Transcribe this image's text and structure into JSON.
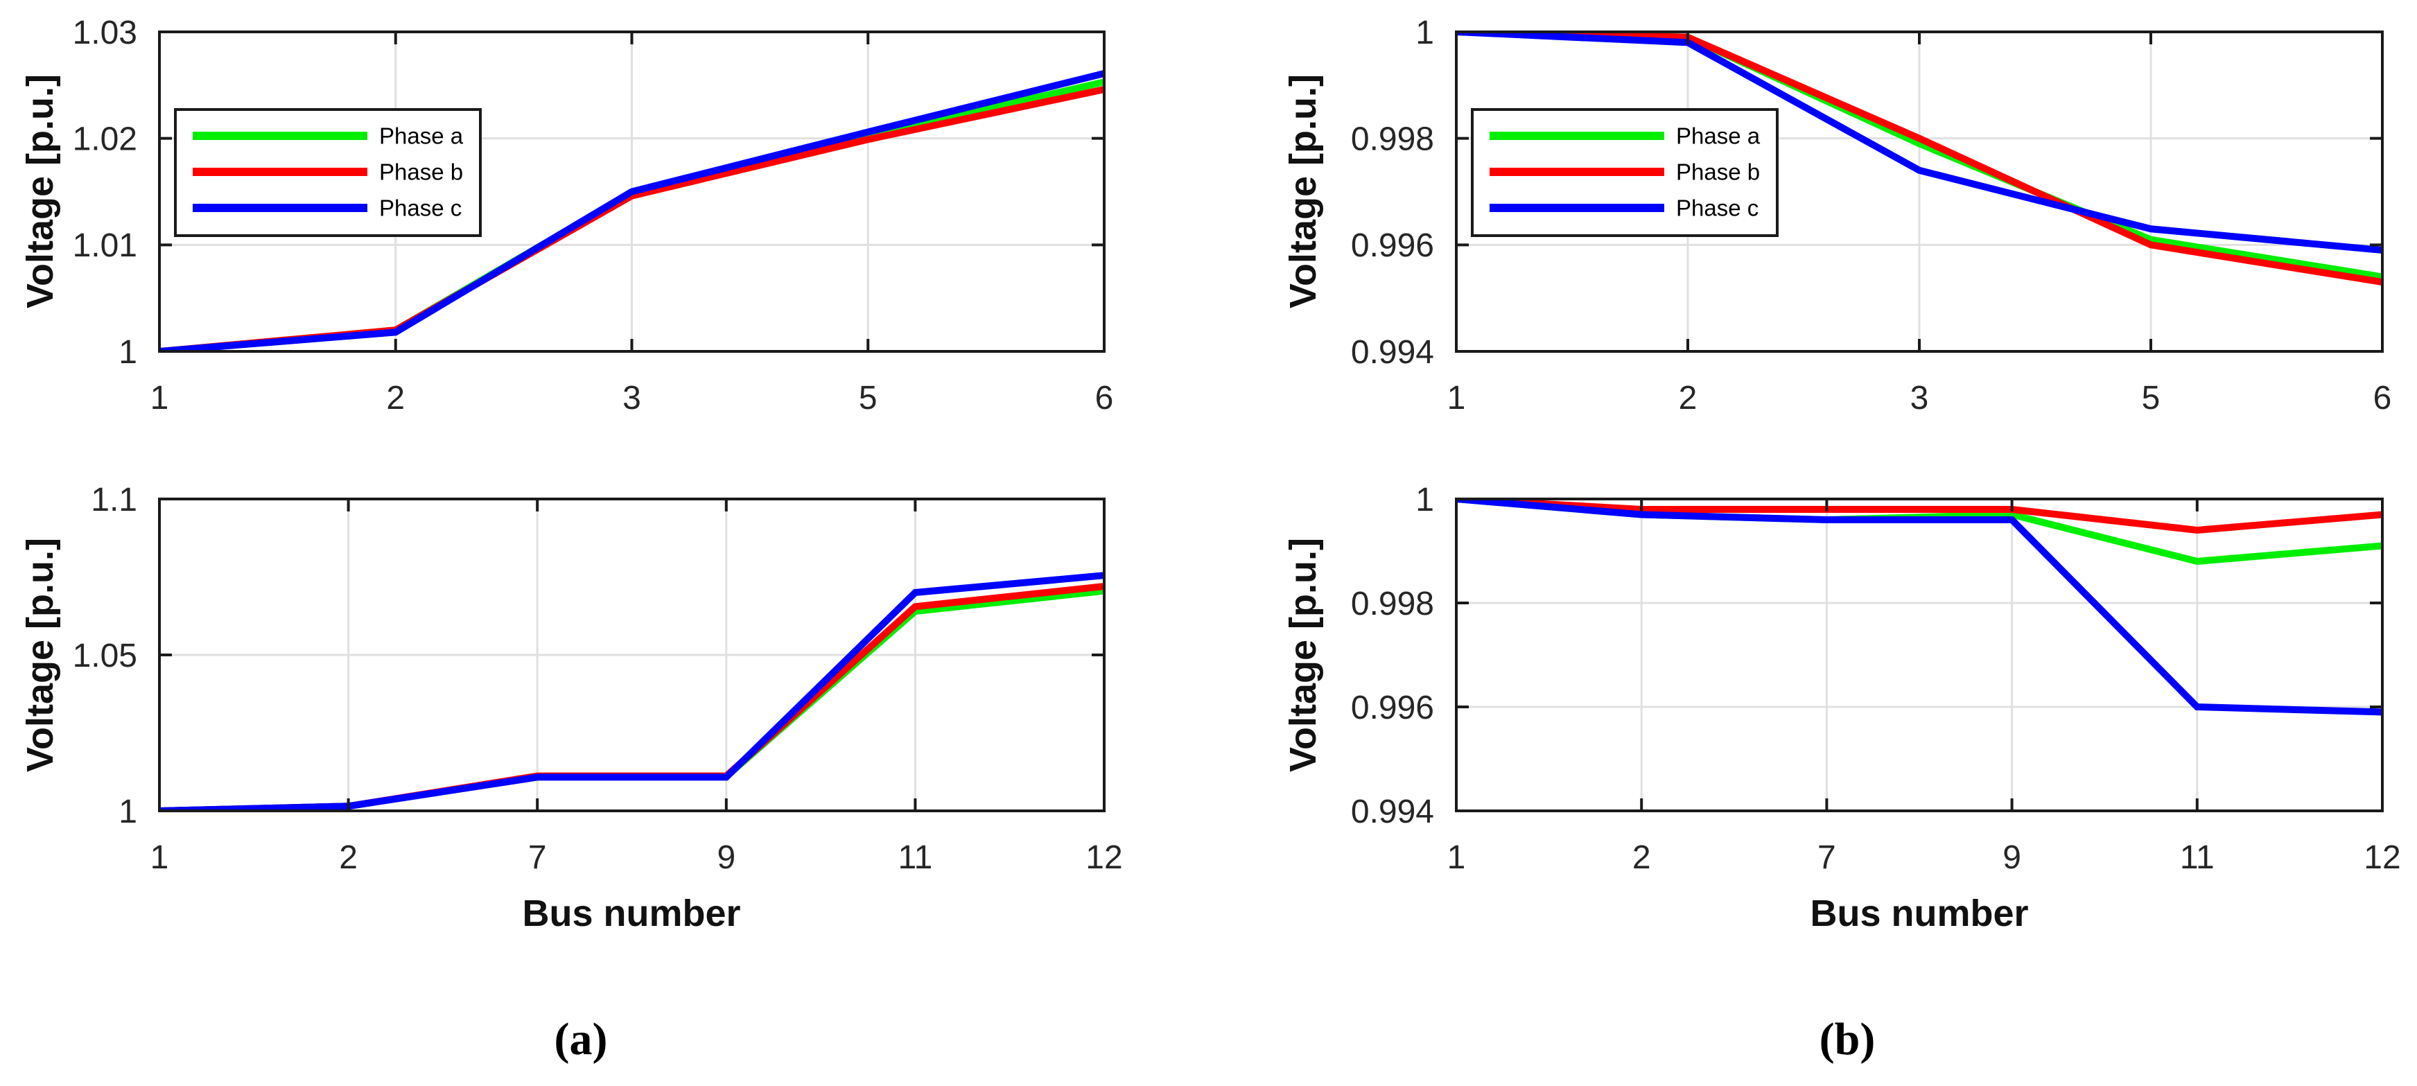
{
  "figure": {
    "captions": {
      "a": "(a)",
      "b": "(b)"
    },
    "colors": {
      "phase_a": "#00ee00",
      "phase_b": "#ff0000",
      "phase_c": "#0000ff",
      "grid": "#e0e0e0",
      "axis": "#1a1a1a",
      "tick_text": "#262626"
    }
  },
  "chart_data": [
    {
      "id": "top-left",
      "type": "line",
      "xlabel": "",
      "ylabel": "Voltage [p.u.]",
      "x_categories": [
        "1",
        "2",
        "3",
        "5",
        "6"
      ],
      "ylim": [
        1.0,
        1.03
      ],
      "yticks": [
        {
          "label": "1",
          "value": 1.0
        },
        {
          "label": "1.01",
          "value": 1.01
        },
        {
          "label": "1.02",
          "value": 1.02
        },
        {
          "label": "1.03",
          "value": 1.03
        }
      ],
      "grid": true,
      "legend": {
        "show": true,
        "position": "upper-left"
      },
      "series": [
        {
          "name": "Phase a",
          "color": "#00ee00",
          "values": [
            1.0,
            1.002,
            1.0149,
            1.0202,
            1.0253
          ]
        },
        {
          "name": "Phase b",
          "color": "#ff0000",
          "values": [
            1.0,
            1.002,
            1.0146,
            1.0199,
            1.0246
          ]
        },
        {
          "name": "Phase c",
          "color": "#0000ff",
          "values": [
            1.0,
            1.0018,
            1.015,
            1.0206,
            1.0261
          ]
        }
      ]
    },
    {
      "id": "top-right",
      "type": "line",
      "xlabel": "",
      "ylabel": "Voltage [p.u.]",
      "x_categories": [
        "1",
        "2",
        "3",
        "5",
        "6"
      ],
      "ylim": [
        0.994,
        1.0
      ],
      "yticks": [
        {
          "label": "0.994",
          "value": 0.994
        },
        {
          "label": "0.996",
          "value": 0.996
        },
        {
          "label": "0.998",
          "value": 0.998
        },
        {
          "label": "1",
          "value": 1.0
        }
      ],
      "grid": true,
      "legend": {
        "show": true,
        "position": "upper-left"
      },
      "series": [
        {
          "name": "Phase a",
          "color": "#00ee00",
          "values": [
            1.0,
            0.9999,
            0.9979,
            0.9961,
            0.9954
          ]
        },
        {
          "name": "Phase b",
          "color": "#ff0000",
          "values": [
            1.0,
            0.9999,
            0.998,
            0.996,
            0.9953
          ]
        },
        {
          "name": "Phase c",
          "color": "#0000ff",
          "values": [
            1.0,
            0.9998,
            0.9974,
            0.9963,
            0.9959
          ]
        }
      ]
    },
    {
      "id": "bottom-left",
      "type": "line",
      "xlabel": "Bus number",
      "ylabel": "Voltage [p.u.]",
      "x_categories": [
        "1",
        "2",
        "7",
        "9",
        "11",
        "12"
      ],
      "ylim": [
        1.0,
        1.1
      ],
      "yticks": [
        {
          "label": "1",
          "value": 1.0
        },
        {
          "label": "1.05",
          "value": 1.05
        },
        {
          "label": "1.1",
          "value": 1.1
        }
      ],
      "grid": true,
      "legend": {
        "show": false,
        "position": ""
      },
      "series": [
        {
          "name": "Phase a",
          "color": "#00ee00",
          "values": [
            1.0,
            1.0015,
            1.011,
            1.011,
            1.064,
            1.0705
          ]
        },
        {
          "name": "Phase b",
          "color": "#ff0000",
          "values": [
            1.0,
            1.0015,
            1.0112,
            1.0112,
            1.0655,
            1.072
          ]
        },
        {
          "name": "Phase c",
          "color": "#0000ff",
          "values": [
            1.0,
            1.0015,
            1.0108,
            1.0108,
            1.07,
            1.0755
          ]
        }
      ]
    },
    {
      "id": "bottom-right",
      "type": "line",
      "xlabel": "Bus number",
      "ylabel": "Voltage [p.u.]",
      "x_categories": [
        "1",
        "2",
        "7",
        "9",
        "11",
        "12"
      ],
      "ylim": [
        0.994,
        1.0
      ],
      "yticks": [
        {
          "label": "0.994",
          "value": 0.994
        },
        {
          "label": "0.996",
          "value": 0.996
        },
        {
          "label": "0.998",
          "value": 0.998
        },
        {
          "label": "1",
          "value": 1.0
        }
      ],
      "grid": true,
      "legend": {
        "show": false,
        "position": ""
      },
      "series": [
        {
          "name": "Phase a",
          "color": "#00ee00",
          "values": [
            1.0,
            0.9997,
            0.9996,
            0.9997,
            0.9988,
            0.9991
          ]
        },
        {
          "name": "Phase b",
          "color": "#ff0000",
          "values": [
            1.0,
            0.9998,
            0.9998,
            0.9998,
            0.9994,
            0.9997
          ]
        },
        {
          "name": "Phase c",
          "color": "#0000ff",
          "values": [
            1.0,
            0.9997,
            0.9996,
            0.9996,
            0.996,
            0.9959
          ]
        }
      ]
    }
  ]
}
